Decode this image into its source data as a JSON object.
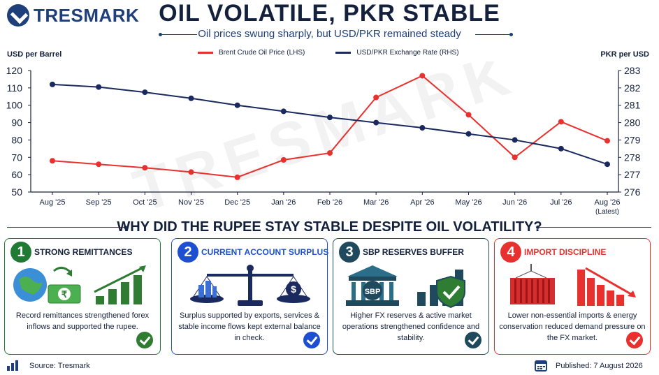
{
  "brand": {
    "name": "TRESMARK"
  },
  "header": {
    "title": "OIL VOLATILE, PKR STABLE",
    "subtitle": "Oil prices swung sharply, but USD/PKR remained steady"
  },
  "chart_data": {
    "type": "line",
    "watermark": "TRESMARK",
    "x": [
      "Aug '25",
      "Sep '25",
      "Oct '25",
      "Nov '25",
      "Dec '25",
      "Jan '26",
      "Feb '26",
      "Mar '26",
      "Apr '26",
      "May '26",
      "Jun '26",
      "Jul '26",
      "Aug '26"
    ],
    "x_sublabels": [
      "",
      "",
      "",
      "",
      "",
      "",
      "",
      "",
      "",
      "",
      "",
      "",
      "(Latest)"
    ],
    "left_axis": {
      "label": "USD per Barrel",
      "ylim": [
        50,
        120
      ],
      "ticks": [
        50,
        60,
        70,
        80,
        90,
        100,
        110,
        120
      ]
    },
    "right_axis": {
      "label": "PKR per USD",
      "ylim": [
        276,
        283
      ],
      "ticks": [
        276,
        277,
        278,
        279,
        280,
        281,
        282,
        283
      ]
    },
    "series": [
      {
        "name": "Brent Crude Oil Price (LHS)",
        "axis": "left",
        "color": "#e8312f",
        "values": [
          68,
          66,
          64,
          61.5,
          58.5,
          68.5,
          72.5,
          104.5,
          117,
          94.5,
          70,
          90.5,
          79.5
        ]
      },
      {
        "name": "USD/PKR Exchange Rate (RHS)",
        "axis": "right",
        "color": "#1b2a5e",
        "values": [
          282.2,
          282.05,
          281.75,
          281.4,
          281.0,
          280.65,
          280.3,
          280.0,
          279.7,
          279.35,
          279.0,
          278.5,
          277.6
        ]
      }
    ],
    "grid": false,
    "legend_position": "top-center"
  },
  "section": {
    "title": "WHY DID THE RUPEE STAY STABLE DESPITE OIL VOLATILITY?"
  },
  "cards": [
    {
      "num": "1",
      "title": "STRONG REMITTANCES",
      "body": "Record remittances strengthened forex inflows and supported the rupee.",
      "color": "#1f7a34",
      "icon": "globe-money-bars-icon",
      "glyph": "₹"
    },
    {
      "num": "2",
      "title": "CURRENT ACCOUNT SURPLUS",
      "body": "Surplus supported by exports, services & stable income flows kept external balance in check.",
      "color": "#1d4fd0",
      "icon": "balance-scale-icon",
      "glyph": "$"
    },
    {
      "num": "3",
      "title": "SBP RESERVES BUFFER",
      "body": "Higher FX reserves & active market operations strengthened confidence and stability.",
      "color": "#1f4a5e",
      "icon": "bank-shield-icon",
      "glyph": "SBP"
    },
    {
      "num": "4",
      "title": "IMPORT DISCIPLINE",
      "body": "Lower non-essential imports & energy conservation reduced demand pressure on the FX market.",
      "color": "#e8312f",
      "icon": "container-down-bars-icon",
      "glyph": ""
    }
  ],
  "footer": {
    "source": "Source: Tresmark",
    "published": "Published:  7 August 2026"
  }
}
